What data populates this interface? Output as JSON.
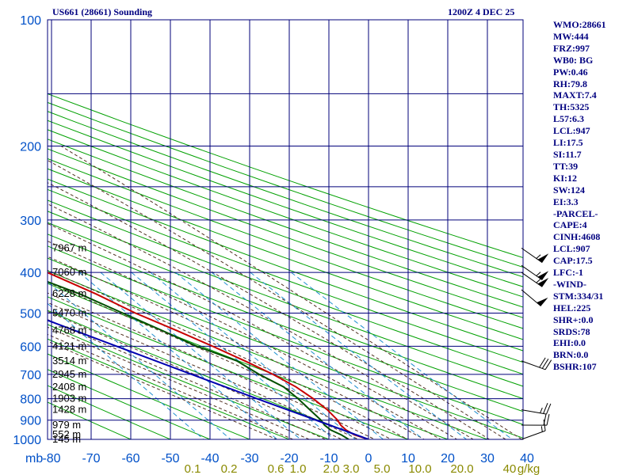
{
  "header": {
    "station": "US661 (28661) Sounding",
    "time": "1200Z  4 DEC 25"
  },
  "indices": [
    "WMO:28661",
    "MW:444",
    "FRZ:997",
    "WB0: BG",
    "PW:0.46",
    "RH:79.8",
    "MAXT:7.4",
    "TH:5325",
    "L57:6.3",
    "LCL:947",
    "LI:17.5",
    "SI:11.7",
    "TT:39",
    "KI:12",
    "SW:124",
    "EI:3.3",
    "-PARCEL-",
    "CAPE:4",
    "CINH:4608",
    "LCL:907",
    "CAP:17.5",
    "LFC:-1",
    "-WIND-",
    "STM:334/31",
    "HEL:225",
    "SHR+:0.0",
    "SRDS:78",
    "EHI:0.0",
    "BRN:0.0",
    "BSHR:107"
  ],
  "colors": {
    "axis_text": "#0050c8",
    "grid": "#00007a",
    "dry_adiabat": "#00a000",
    "moist_adiabat": "#503020",
    "mixing_ratio": "#2090d0",
    "mixing_ratio_text": "#8a8a00",
    "temperature": "#c80000",
    "dewpoint": "#005000",
    "parcel": "#0000b0",
    "heights": "#000000",
    "wind_barb": "#000000"
  },
  "chart_data": {
    "type": "skew-t",
    "xlabel": "mb",
    "x_ticks": [
      -80,
      -70,
      -60,
      -50,
      -40,
      -30,
      -20,
      -10,
      0,
      10,
      20,
      30,
      40
    ],
    "x_tick_labels": [
      "-80",
      "-70",
      "-60",
      "-50",
      "-40",
      "-30",
      "-20",
      "-10",
      "0",
      "10",
      "20",
      "30",
      "40"
    ],
    "p_ticks": [
      100,
      200,
      300,
      400,
      500,
      600,
      700,
      800,
      900,
      1000
    ],
    "p_tick_labels": [
      "100",
      "200",
      "300",
      "400",
      "500",
      "600",
      "700",
      "800",
      "900",
      "1000"
    ],
    "mixing_ratio_labels": [
      "0.1",
      "0.2",
      "0.6",
      "1.0",
      "2.0",
      "3.0",
      "5.0",
      "10.0",
      "20.0",
      "40",
      "g/kg"
    ],
    "heights": [
      {
        "p": 1000,
        "label": "145 m"
      },
      {
        "p": 975,
        "label": "552 m"
      },
      {
        "p": 925,
        "label": "979 m"
      },
      {
        "p": 850,
        "label": "1428 m"
      },
      {
        "p": 800,
        "label": "1903 m"
      },
      {
        "p": 750,
        "label": "2408 m"
      },
      {
        "p": 700,
        "label": "2945 m"
      },
      {
        "p": 650,
        "label": "3514 m"
      },
      {
        "p": 600,
        "label": "4121 m"
      },
      {
        "p": 550,
        "label": "4768 m"
      },
      {
        "p": 500,
        "label": "5470 m"
      },
      {
        "p": 450,
        "label": "6228 m"
      },
      {
        "p": 400,
        "label": "7060 m"
      },
      {
        "p": 350,
        "label": "7967 m"
      }
    ],
    "series": [
      {
        "points": [
          [
            1000,
            0.0
          ],
          [
            975,
            -2.5
          ],
          [
            950,
            -3.4
          ],
          [
            925,
            -3.6
          ],
          [
            900,
            -3.2
          ],
          [
            850,
            -3.3
          ],
          [
            800,
            -4.2
          ],
          [
            750,
            -5.7
          ],
          [
            700,
            -8.5
          ],
          [
            650,
            -12.4
          ],
          [
            600,
            -17.0
          ],
          [
            550,
            -22.3
          ],
          [
            500,
            -28.5
          ],
          [
            450,
            -33.9
          ],
          [
            400,
            -41.0
          ],
          [
            370,
            -45.0
          ],
          [
            330,
            -51.0
          ]
        ]
      },
      {
        "points": [
          [
            1000,
            -5.0
          ],
          [
            975,
            -5.8
          ],
          [
            950,
            -7.3
          ],
          [
            925,
            -7.7
          ],
          [
            900,
            -7.4
          ],
          [
            850,
            -7.7
          ],
          [
            800,
            -8.0
          ],
          [
            750,
            -8.8
          ],
          [
            700,
            -12.0
          ],
          [
            650,
            -14.4
          ],
          [
            600,
            -21.0
          ],
          [
            550,
            -26.0
          ],
          [
            500,
            -31.7
          ],
          [
            450,
            -38.0
          ],
          [
            400,
            -47.2
          ],
          [
            370,
            -50.7
          ],
          [
            325,
            -56.3
          ]
        ]
      },
      {
        "points": [
          [
            1000,
            0.0
          ],
          [
            907,
            -8.0
          ],
          [
            800,
            -18.4
          ],
          [
            700,
            -29.0
          ],
          [
            600,
            -41.2
          ],
          [
            500,
            -55.5
          ],
          [
            400,
            -73.0
          ],
          [
            300,
            -96.0
          ],
          [
            267,
            -105.0
          ]
        ]
      }
    ],
    "wind_barbs": [
      {
        "p": 350,
        "dir": 305,
        "speed": 55
      },
      {
        "p": 385,
        "dir": 305,
        "speed": 55
      },
      {
        "p": 400,
        "dir": 305,
        "speed": 60
      },
      {
        "p": 440,
        "dir": 310,
        "speed": 50
      },
      {
        "p": 650,
        "dir": 290,
        "speed": 30
      },
      {
        "p": 850,
        "dir": 280,
        "speed": 25
      },
      {
        "p": 925,
        "dir": 270,
        "speed": 20
      },
      {
        "p": 1000,
        "dir": 250,
        "speed": 15
      }
    ]
  }
}
